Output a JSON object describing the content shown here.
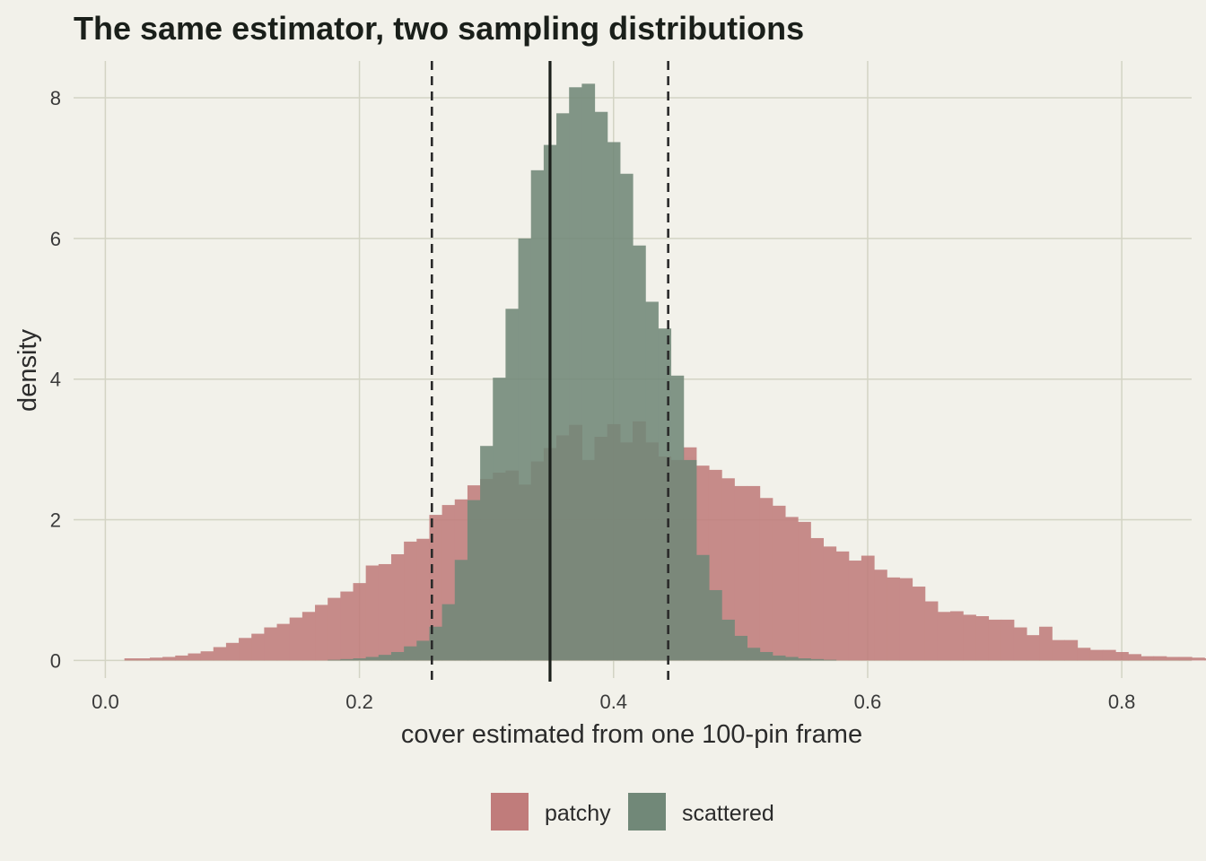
{
  "chart_data": {
    "type": "histogram",
    "title": "The same estimator, two sampling distributions",
    "xlabel": "cover estimated from one 100-pin frame",
    "ylabel": "density",
    "xlim": [
      -0.025,
      0.855
    ],
    "ylim": [
      -0.25,
      8.6
    ],
    "x_ticks": [
      {
        "value": 0.0,
        "label": "0.0"
      },
      {
        "value": 0.2,
        "label": "0.2"
      },
      {
        "value": 0.4,
        "label": "0.4"
      },
      {
        "value": 0.6,
        "label": "0.6"
      },
      {
        "value": 0.8,
        "label": "0.8"
      }
    ],
    "y_ticks": [
      {
        "value": 0,
        "label": "0"
      },
      {
        "value": 2,
        "label": "2"
      },
      {
        "value": 4,
        "label": "4"
      },
      {
        "value": 6,
        "label": "6"
      },
      {
        "value": 8,
        "label": "8"
      }
    ],
    "grid": true,
    "bin_width": 0.01,
    "reference_lines": [
      {
        "x": 0.35,
        "style": "solid"
      },
      {
        "x": 0.257,
        "style": "dashed"
      },
      {
        "x": 0.443,
        "style": "dashed"
      }
    ],
    "legend": {
      "position": "bottom"
    },
    "series": [
      {
        "name": "patchy",
        "color": "#c07c7b",
        "bins_start": 0.015,
        "values": [
          0.03,
          0.03,
          0.04,
          0.05,
          0.07,
          0.1,
          0.13,
          0.19,
          0.25,
          0.32,
          0.38,
          0.47,
          0.52,
          0.61,
          0.69,
          0.79,
          0.89,
          0.98,
          1.1,
          1.35,
          1.37,
          1.51,
          1.69,
          1.73,
          2.07,
          2.21,
          2.29,
          2.49,
          2.58,
          2.67,
          2.7,
          2.5,
          2.83,
          3.02,
          3.2,
          3.35,
          2.85,
          3.18,
          3.36,
          3.1,
          3.4,
          3.1,
          2.9,
          2.85,
          3.03,
          2.77,
          2.71,
          2.59,
          2.48,
          2.48,
          2.31,
          2.2,
          2.04,
          1.97,
          1.74,
          1.62,
          1.55,
          1.42,
          1.49,
          1.29,
          1.18,
          1.17,
          1.05,
          0.84,
          0.69,
          0.7,
          0.65,
          0.63,
          0.58,
          0.58,
          0.47,
          0.36,
          0.48,
          0.29,
          0.29,
          0.18,
          0.15,
          0.15,
          0.12,
          0.09,
          0.06,
          0.06,
          0.05,
          0.05,
          0.04,
          0.03,
          0.02,
          0.02,
          0.01,
          0.01,
          0.02,
          0.01,
          0.01,
          0.01,
          0.01,
          0.01
        ]
      },
      {
        "name": "scattered",
        "color": "#718878",
        "bins_start": 0.175,
        "values": [
          0.01,
          0.02,
          0.03,
          0.05,
          0.08,
          0.12,
          0.2,
          0.28,
          0.48,
          0.8,
          1.43,
          2.28,
          3.05,
          4.02,
          5.0,
          6.0,
          6.97,
          7.33,
          7.78,
          8.15,
          8.2,
          7.8,
          7.37,
          6.92,
          5.9,
          5.1,
          4.72,
          4.05,
          2.85,
          1.5,
          1.0,
          0.58,
          0.35,
          0.18,
          0.12,
          0.07,
          0.05,
          0.03,
          0.02,
          0.01
        ]
      }
    ]
  }
}
